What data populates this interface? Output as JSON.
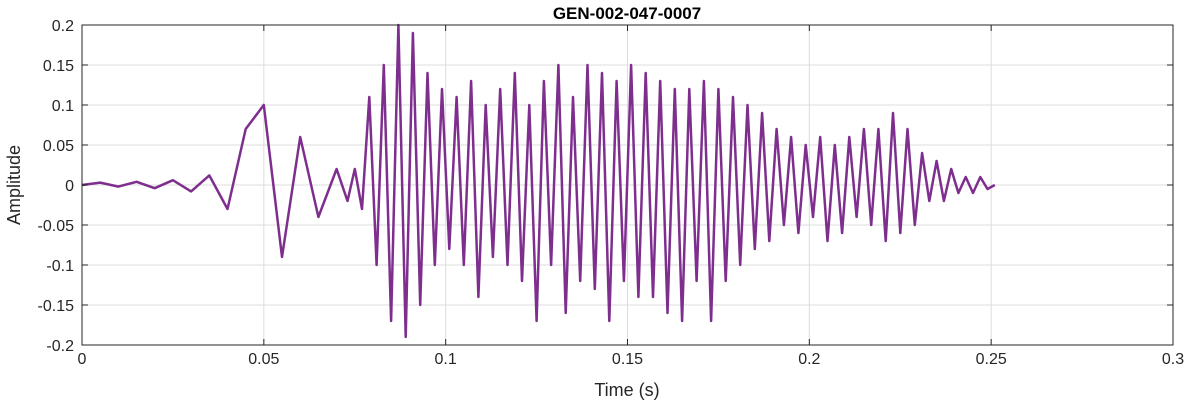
{
  "chart_data": {
    "type": "line",
    "title": "GEN-002-047-0007",
    "xlabel": "Time (s)",
    "ylabel": "Amplitude",
    "xlim": [
      0,
      0.3
    ],
    "ylim": [
      -0.2,
      0.2
    ],
    "grid": true,
    "x_ticks": [
      0,
      0.05,
      0.1,
      0.15,
      0.2,
      0.25,
      0.3
    ],
    "x_tick_labels": [
      "0",
      "0.05",
      "0.1",
      "0.15",
      "0.2",
      "0.25",
      "0.3"
    ],
    "y_ticks": [
      0.2,
      0.15,
      0.1,
      0.05,
      0,
      -0.05,
      -0.1,
      -0.15,
      -0.2
    ],
    "y_tick_labels": [
      "0.2",
      "0.15",
      "0.1",
      "0.05",
      "0",
      "-0.05",
      "-0.1",
      "-0.15",
      "-0.2"
    ],
    "series": [
      {
        "color": "#7E2F8E",
        "x": [
          0,
          0.005,
          0.01,
          0.015,
          0.02,
          0.025,
          0.03,
          0.035,
          0.04,
          0.045,
          0.05,
          0.055,
          0.06,
          0.065,
          0.07,
          0.073,
          0.075,
          0.077,
          0.079,
          0.081,
          0.083,
          0.085,
          0.087,
          0.089,
          0.091,
          0.093,
          0.095,
          0.097,
          0.099,
          0.101,
          0.103,
          0.105,
          0.107,
          0.109,
          0.111,
          0.113,
          0.115,
          0.117,
          0.119,
          0.121,
          0.123,
          0.125,
          0.127,
          0.129,
          0.131,
          0.133,
          0.135,
          0.137,
          0.139,
          0.141,
          0.143,
          0.145,
          0.147,
          0.149,
          0.151,
          0.153,
          0.155,
          0.157,
          0.159,
          0.161,
          0.163,
          0.165,
          0.167,
          0.169,
          0.171,
          0.173,
          0.175,
          0.177,
          0.179,
          0.181,
          0.183,
          0.185,
          0.187,
          0.189,
          0.191,
          0.193,
          0.195,
          0.197,
          0.199,
          0.201,
          0.203,
          0.205,
          0.207,
          0.209,
          0.211,
          0.213,
          0.215,
          0.217,
          0.219,
          0.221,
          0.223,
          0.225,
          0.227,
          0.229,
          0.231,
          0.233,
          0.235,
          0.237,
          0.239,
          0.241,
          0.243,
          0.245,
          0.247,
          0.249,
          0.251
        ],
        "y": [
          0,
          0.003,
          -0.002,
          0.004,
          -0.004,
          0.006,
          -0.008,
          0.012,
          -0.03,
          0.07,
          0.1,
          -0.09,
          0.06,
          -0.04,
          0.02,
          -0.02,
          0.02,
          -0.03,
          0.11,
          -0.1,
          0.15,
          -0.17,
          0.2,
          -0.19,
          0.19,
          -0.15,
          0.14,
          -0.1,
          0.12,
          -0.08,
          0.11,
          -0.1,
          0.13,
          -0.14,
          0.1,
          -0.09,
          0.12,
          -0.1,
          0.14,
          -0.12,
          0.1,
          -0.17,
          0.13,
          -0.1,
          0.15,
          -0.16,
          0.11,
          -0.12,
          0.15,
          -0.13,
          0.14,
          -0.17,
          0.13,
          -0.12,
          0.15,
          -0.14,
          0.14,
          -0.14,
          0.13,
          -0.16,
          0.12,
          -0.17,
          0.12,
          -0.12,
          0.13,
          -0.17,
          0.12,
          -0.12,
          0.11,
          -0.1,
          0.1,
          -0.08,
          0.09,
          -0.07,
          0.07,
          -0.05,
          0.06,
          -0.06,
          0.05,
          -0.04,
          0.06,
          -0.07,
          0.05,
          -0.06,
          0.06,
          -0.04,
          0.07,
          -0.05,
          0.07,
          -0.07,
          0.09,
          -0.06,
          0.07,
          -0.05,
          0.04,
          -0.02,
          0.03,
          -0.02,
          0.02,
          -0.01,
          0.01,
          -0.01,
          0.01,
          -0.005,
          0
        ]
      }
    ]
  }
}
